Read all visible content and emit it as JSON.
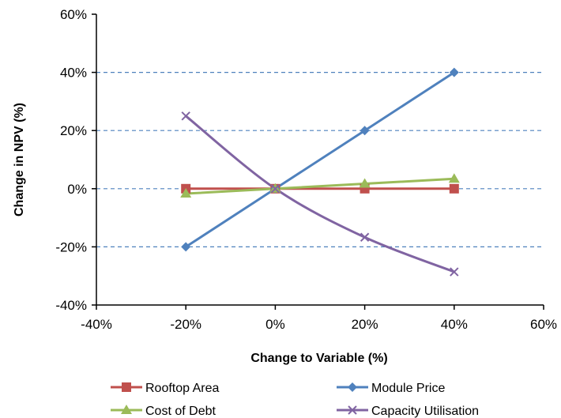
{
  "chart_data": {
    "type": "line",
    "xlabel": "Change to Variable (%)",
    "ylabel": "Change in NPV (%)",
    "xlim": [
      -40,
      60
    ],
    "ylim": [
      -40,
      60
    ],
    "x_ticks": [
      "-40%",
      "-20%",
      "0%",
      "20%",
      "40%",
      "60%"
    ],
    "y_ticks": [
      "60%",
      "40%",
      "20%",
      "0%",
      "-20%",
      "-40%"
    ],
    "x": [
      -20,
      0,
      20,
      40
    ],
    "grid": "horizontal dashed",
    "legend_position": "bottom",
    "series": [
      {
        "name": "Rooftop Area",
        "color": "#c0504d",
        "marker": "square",
        "values": [
          0,
          0,
          0,
          0
        ]
      },
      {
        "name": "Module Price",
        "color": "#4f81bd",
        "marker": "diamond",
        "values": [
          -20,
          0,
          20,
          40
        ]
      },
      {
        "name": "Cost of Debt",
        "color": "#9bbb59",
        "marker": "triangle",
        "values": [
          -1.7,
          0,
          1.7,
          3.4
        ]
      },
      {
        "name": "Capacity Utilisation",
        "color": "#8064a2",
        "marker": "x",
        "values": [
          25,
          0,
          -16.7,
          -28.6
        ]
      }
    ]
  }
}
